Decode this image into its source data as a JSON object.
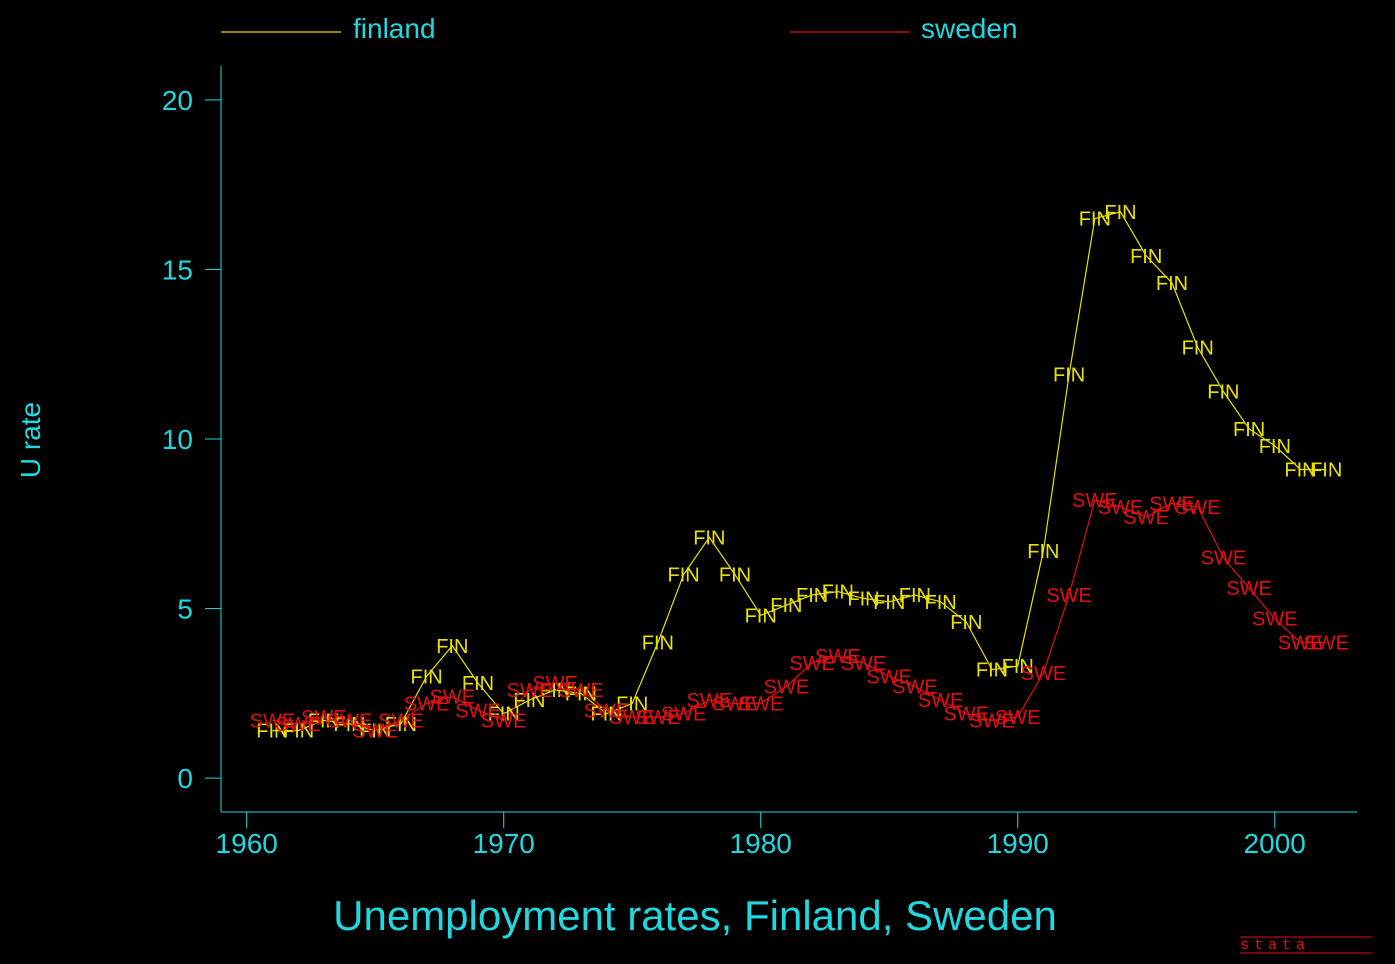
{
  "chart_data": {
    "type": "line",
    "title": "Unemployment rates, Finland, Sweden",
    "ylabel": "U rate",
    "xlabel": "",
    "xlim": [
      1959,
      2003.2
    ],
    "ylim": [
      -1,
      21
    ],
    "xticks": [
      1960,
      1970,
      1980,
      1990,
      2000
    ],
    "yticks": [
      0,
      5,
      10,
      15,
      20
    ],
    "grid": false,
    "legend_position": "top",
    "axis_color": "#22d8e0",
    "background": "#000000",
    "x": [
      1961,
      1962,
      1963,
      1964,
      1965,
      1966,
      1967,
      1968,
      1969,
      1970,
      1971,
      1972,
      1973,
      1974,
      1975,
      1976,
      1977,
      1978,
      1979,
      1980,
      1981,
      1982,
      1983,
      1984,
      1985,
      1986,
      1987,
      1988,
      1989,
      1990,
      1991,
      1992,
      1993,
      1994,
      1995,
      1996,
      1997,
      1998,
      1999,
      2000,
      2001,
      2002
    ],
    "series": [
      {
        "name": "finland",
        "marker": "FIN",
        "color": "#e8e000",
        "values": [
          1.4,
          1.4,
          1.7,
          1.6,
          1.4,
          1.6,
          3.0,
          3.9,
          2.8,
          1.9,
          2.3,
          2.6,
          2.5,
          1.9,
          2.2,
          4.0,
          6.0,
          7.1,
          6.0,
          4.8,
          5.1,
          5.4,
          5.5,
          5.3,
          5.2,
          5.4,
          5.2,
          4.6,
          3.2,
          3.3,
          6.7,
          11.9,
          16.5,
          16.7,
          15.4,
          14.6,
          12.7,
          11.4,
          10.3,
          9.8,
          9.1,
          9.1
        ]
      },
      {
        "name": "sweden",
        "marker": "SWE",
        "color": "#e01010",
        "values": [
          1.7,
          1.6,
          1.8,
          1.7,
          1.4,
          1.7,
          2.2,
          2.4,
          2.0,
          1.7,
          2.6,
          2.8,
          2.6,
          2.0,
          1.8,
          1.8,
          1.9,
          2.3,
          2.2,
          2.2,
          2.7,
          3.4,
          3.6,
          3.4,
          3.0,
          2.7,
          2.3,
          1.9,
          1.7,
          1.8,
          3.1,
          5.4,
          8.2,
          8.0,
          7.7,
          8.1,
          8.0,
          6.5,
          5.6,
          4.7,
          4.0,
          4.0
        ]
      }
    ]
  },
  "watermark": "stata"
}
